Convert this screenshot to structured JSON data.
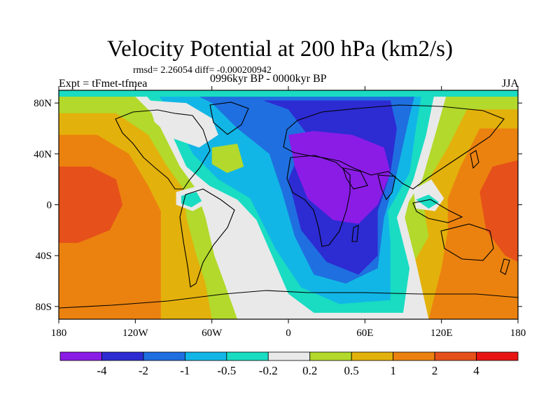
{
  "title": "Velocity Potential at 200 hPa (km2/s)",
  "stats_line": "rmsd= 2.26054  diff= -0.000200942",
  "left_label": "Expt = tFmet-tfmea",
  "center_label": "0996kyr BP - 0000kyr BP",
  "right_label": "JJA",
  "map": {
    "projection": "cylindrical equidistant",
    "lon_range": [
      -180,
      180
    ],
    "lat_range": [
      -90,
      90
    ],
    "x_ticks": [
      {
        "lon": -180,
        "label": "180"
      },
      {
        "lon": -120,
        "label": "120W"
      },
      {
        "lon": -60,
        "label": "60W"
      },
      {
        "lon": 0,
        "label": "0"
      },
      {
        "lon": 60,
        "label": "60E"
      },
      {
        "lon": 120,
        "label": "120E"
      },
      {
        "lon": 180,
        "label": "180"
      }
    ],
    "y_ticks": [
      {
        "lat": 80,
        "label": "80N"
      },
      {
        "lat": 40,
        "label": "40N"
      },
      {
        "lat": 0,
        "label": "0"
      },
      {
        "lat": -40,
        "label": "40S"
      },
      {
        "lat": -80,
        "label": "80S"
      }
    ]
  },
  "colorbar": {
    "colors": [
      "#8a1ce6",
      "#2d2bd2",
      "#1f6fe0",
      "#12b6e6",
      "#19dcc2",
      "#e9e9e9",
      "#b2d92b",
      "#e3b10b",
      "#eb820f",
      "#e6501a",
      "#e81414"
    ],
    "labels": [
      "-4",
      "-2",
      "-1",
      "-0.5",
      "-0.2",
      "0.2",
      "0.5",
      "1",
      "2",
      "4"
    ]
  },
  "field_regions": [
    {
      "name": "positive-pacific-1",
      "level": 6,
      "points": [
        [
          -180,
          90
        ],
        [
          -125,
          90
        ],
        [
          -105,
          70
        ],
        [
          -85,
          30
        ],
        [
          -75,
          20
        ],
        [
          -65,
          -10
        ],
        [
          -58,
          -40
        ],
        [
          -50,
          -62
        ],
        [
          -40,
          -90
        ],
        [
          -180,
          -90
        ]
      ]
    },
    {
      "name": "positive-pacific-2",
      "level": 7,
      "points": [
        [
          -180,
          72
        ],
        [
          -135,
          72
        ],
        [
          -110,
          55
        ],
        [
          -95,
          30
        ],
        [
          -82,
          12
        ],
        [
          -80,
          -10
        ],
        [
          -72,
          -40
        ],
        [
          -65,
          -62
        ],
        [
          -60,
          -90
        ],
        [
          -180,
          -90
        ]
      ]
    },
    {
      "name": "positive-pacific-3",
      "level": 8,
      "points": [
        [
          -180,
          55
        ],
        [
          -150,
          55
        ],
        [
          -125,
          40
        ],
        [
          -110,
          15
        ],
        [
          -100,
          -5
        ],
        [
          -100,
          -35
        ],
        [
          -100,
          -90
        ],
        [
          -180,
          -90
        ]
      ]
    },
    {
      "name": "positive-pacific-4",
      "level": 9,
      "points": [
        [
          -180,
          30
        ],
        [
          -155,
          30
        ],
        [
          -135,
          20
        ],
        [
          -130,
          0
        ],
        [
          -140,
          -20
        ],
        [
          -165,
          -30
        ],
        [
          -180,
          -30
        ]
      ]
    },
    {
      "name": "positive-atlantic",
      "level": 7,
      "points": [
        [
          -45,
          20
        ],
        [
          -30,
          25
        ],
        [
          -10,
          28
        ],
        [
          0,
          12
        ],
        [
          -5,
          -2
        ],
        [
          -20,
          -5
        ],
        [
          -35,
          -2
        ],
        [
          -45,
          8
        ]
      ]
    },
    {
      "name": "positive-atlantic-core",
      "level": 9,
      "points": [
        [
          -30,
          14
        ],
        [
          -18,
          20
        ],
        [
          -8,
          12
        ],
        [
          -12,
          3
        ],
        [
          -25,
          4
        ]
      ]
    },
    {
      "name": "positive-east-1",
      "level": 6,
      "points": [
        [
          180,
          90
        ],
        [
          120,
          90
        ],
        [
          110,
          55
        ],
        [
          100,
          20
        ],
        [
          95,
          5
        ],
        [
          90,
          -15
        ],
        [
          80,
          -45
        ],
        [
          70,
          -70
        ],
        [
          60,
          -90
        ],
        [
          180,
          -90
        ]
      ]
    },
    {
      "name": "positive-east-2",
      "level": 7,
      "points": [
        [
          180,
          75
        ],
        [
          140,
          75
        ],
        [
          125,
          45
        ],
        [
          110,
          20
        ],
        [
          105,
          5
        ],
        [
          110,
          -25
        ],
        [
          90,
          -60
        ],
        [
          80,
          -90
        ],
        [
          180,
          -90
        ]
      ]
    },
    {
      "name": "positive-east-3",
      "level": 8,
      "points": [
        [
          180,
          60
        ],
        [
          150,
          60
        ],
        [
          135,
          30
        ],
        [
          125,
          5
        ],
        [
          125,
          -20
        ],
        [
          120,
          -50
        ],
        [
          110,
          -90
        ],
        [
          180,
          -90
        ]
      ]
    },
    {
      "name": "positive-east-4",
      "level": 9,
      "points": [
        [
          180,
          35
        ],
        [
          160,
          30
        ],
        [
          150,
          10
        ],
        [
          155,
          -20
        ],
        [
          170,
          -40
        ],
        [
          180,
          -45
        ]
      ]
    },
    {
      "name": "neutral-band",
      "level": 5,
      "points": [
        [
          -125,
          90
        ],
        [
          -105,
          70
        ],
        [
          -85,
          30
        ],
        [
          -72,
          12
        ],
        [
          -58,
          -3
        ],
        [
          -30,
          -15
        ],
        [
          -20,
          -45
        ],
        [
          -15,
          -75
        ],
        [
          -5,
          -90
        ],
        [
          110,
          -90
        ],
        [
          100,
          -45
        ],
        [
          90,
          -5
        ],
        [
          105,
          20
        ],
        [
          115,
          55
        ],
        [
          125,
          90
        ]
      ]
    },
    {
      "name": "negative-1",
      "level": 4,
      "points": [
        [
          -115,
          90
        ],
        [
          -98,
          70
        ],
        [
          -80,
          30
        ],
        [
          -62,
          15
        ],
        [
          -40,
          4
        ],
        [
          -25,
          -12
        ],
        [
          -12,
          -42
        ],
        [
          0,
          -70
        ],
        [
          20,
          -85
        ],
        [
          90,
          -85
        ],
        [
          95,
          -50
        ],
        [
          85,
          -10
        ],
        [
          98,
          20
        ],
        [
          108,
          55
        ],
        [
          115,
          90
        ]
      ]
    },
    {
      "name": "negative-2",
      "level": 3,
      "points": [
        [
          -105,
          90
        ],
        [
          -90,
          70
        ],
        [
          -75,
          40
        ],
        [
          -55,
          20
        ],
        [
          -30,
          5
        ],
        [
          -10,
          -35
        ],
        [
          10,
          -65
        ],
        [
          40,
          -78
        ],
        [
          80,
          -75
        ],
        [
          80,
          -30
        ],
        [
          78,
          -5
        ],
        [
          95,
          25
        ],
        [
          100,
          60
        ],
        [
          105,
          90
        ]
      ]
    },
    {
      "name": "negative-3",
      "level": 2,
      "points": [
        [
          -80,
          90
        ],
        [
          -60,
          80
        ],
        [
          -40,
          60
        ],
        [
          -15,
          40
        ],
        [
          -5,
          10
        ],
        [
          5,
          -25
        ],
        [
          20,
          -55
        ],
        [
          45,
          -62
        ],
        [
          70,
          -50
        ],
        [
          75,
          -10
        ],
        [
          85,
          25
        ],
        [
          95,
          70
        ],
        [
          100,
          90
        ]
      ]
    },
    {
      "name": "negative-4",
      "level": 1,
      "points": [
        [
          -20,
          82
        ],
        [
          0,
          75
        ],
        [
          15,
          55
        ],
        [
          0,
          20
        ],
        [
          10,
          -20
        ],
        [
          30,
          -45
        ],
        [
          55,
          -55
        ],
        [
          70,
          -40
        ],
        [
          70,
          -5
        ],
        [
          80,
          25
        ],
        [
          85,
          60
        ],
        [
          80,
          82
        ]
      ]
    },
    {
      "name": "negative-5",
      "level": 0,
      "points": [
        [
          0,
          55
        ],
        [
          20,
          58
        ],
        [
          50,
          55
        ],
        [
          75,
          45
        ],
        [
          80,
          25
        ],
        [
          70,
          0
        ],
        [
          55,
          -15
        ],
        [
          35,
          -12
        ],
        [
          15,
          5
        ],
        [
          5,
          30
        ]
      ]
    },
    {
      "name": "neutral-north",
      "level": 5,
      "points": [
        [
          -110,
          82
        ],
        [
          -80,
          80
        ],
        [
          -60,
          68
        ],
        [
          -55,
          55
        ],
        [
          -70,
          45
        ],
        [
          -90,
          52
        ],
        [
          -105,
          65
        ]
      ]
    },
    {
      "name": "positive-north-atlantic",
      "level": 6,
      "points": [
        [
          -60,
          45
        ],
        [
          -40,
          48
        ],
        [
          -35,
          30
        ],
        [
          -48,
          25
        ],
        [
          -60,
          32
        ]
      ]
    },
    {
      "name": "neutral-caribbean",
      "level": 5,
      "points": [
        [
          -88,
          10
        ],
        [
          -70,
          15
        ],
        [
          -62,
          2
        ],
        [
          -75,
          -5
        ],
        [
          -88,
          0
        ]
      ]
    },
    {
      "name": "low-caribbean",
      "level": 4,
      "points": [
        [
          -84,
          7
        ],
        [
          -72,
          10
        ],
        [
          -68,
          3
        ],
        [
          -76,
          -2
        ],
        [
          -84,
          1
        ]
      ]
    },
    {
      "name": "neutral-warm-pool",
      "level": 5,
      "points": [
        [
          98,
          12
        ],
        [
          112,
          20
        ],
        [
          122,
          5
        ],
        [
          115,
          -5
        ],
        [
          100,
          -3
        ]
      ]
    },
    {
      "name": "low-warm-pool",
      "level": 4,
      "points": [
        [
          100,
          4
        ],
        [
          110,
          8
        ],
        [
          118,
          2
        ],
        [
          110,
          -3
        ]
      ]
    },
    {
      "name": "arctic-cap",
      "level": 4,
      "points": [
        [
          -180,
          90
        ],
        [
          180,
          90
        ],
        [
          180,
          85
        ],
        [
          -180,
          85
        ]
      ]
    }
  ]
}
